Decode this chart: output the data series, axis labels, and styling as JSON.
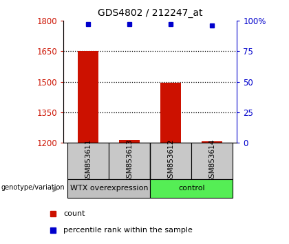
{
  "title": "GDS4802 / 212247_at",
  "samples": [
    "GSM853611",
    "GSM853613",
    "GSM853612",
    "GSM853614"
  ],
  "count_values": [
    1650,
    1215,
    1495,
    1207
  ],
  "percentile_values": [
    97,
    97,
    97,
    96
  ],
  "ymin": 1200,
  "ymax": 1800,
  "yticks": [
    1200,
    1350,
    1500,
    1650,
    1800
  ],
  "right_yticks": [
    0,
    25,
    50,
    75,
    100
  ],
  "dotted_lines": [
    1350,
    1500,
    1650
  ],
  "bar_color": "#cc1100",
  "square_color": "#0000cc",
  "group_labels": [
    "WTX overexpression",
    "control"
  ],
  "group_colors": [
    "#c0c0c0",
    "#55ee55"
  ],
  "genotype_label": "genotype/variation",
  "legend1": "count",
  "legend2": "percentile rank within the sample",
  "left_axis_color": "#cc1100",
  "right_axis_color": "#0000cc",
  "bar_bottom": 1200,
  "bar_width": 0.5,
  "x_positions": [
    0,
    1,
    2,
    3
  ],
  "bg_color": "#ffffff"
}
